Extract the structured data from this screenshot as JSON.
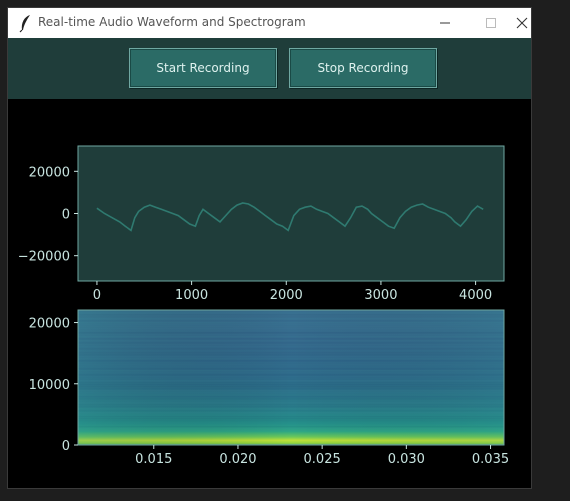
{
  "window": {
    "title": "Real-time Audio Waveform and Spectrogram"
  },
  "toolbar": {
    "start_label": "Start Recording",
    "stop_label": "Stop Recording"
  },
  "colors": {
    "toolbar_bg": "#1f3d3a",
    "button_bg": "#2b6b66",
    "plot_bg": "#1f3d3a",
    "waveform_line": "#2f7a70",
    "axis_text": "#c8e4e0"
  },
  "chart_data": [
    {
      "type": "line",
      "xlim": [
        -200,
        4300
      ],
      "ylim": [
        -32000,
        32000
      ],
      "xticks": [
        0,
        1000,
        2000,
        3000,
        4000
      ],
      "yticks": [
        20000,
        0,
        -20000
      ],
      "xtick_labels": [
        "0",
        "1000",
        "2000",
        "3000",
        "4000"
      ],
      "ytick_labels": [
        "20000",
        "0",
        "−20000"
      ],
      "series": [
        {
          "x": [
            0,
            80,
            160,
            240,
            300,
            360,
            400,
            440,
            500,
            560,
            620,
            680,
            740,
            800,
            860,
            920,
            980,
            1040,
            1080,
            1120,
            1180,
            1240,
            1300,
            1360,
            1420,
            1480,
            1540,
            1600,
            1660,
            1720,
            1780,
            1840,
            1900,
            1960,
            2020,
            2080,
            2140,
            2200,
            2260,
            2320,
            2380,
            2440,
            2500,
            2560,
            2620,
            2680,
            2740,
            2800,
            2860,
            2900,
            2960,
            3020,
            3080,
            3140,
            3200,
            3260,
            3320,
            3380,
            3440,
            3500,
            3560,
            3620,
            3680,
            3740,
            3780,
            3840,
            3900,
            3960,
            4020,
            4080
          ],
          "y": [
            2500,
            0,
            -2000,
            -4000,
            -6000,
            -8000,
            -2000,
            1000,
            3000,
            4000,
            3000,
            2000,
            1000,
            0,
            -1000,
            -3000,
            -5000,
            -6000,
            -1000,
            2000,
            0,
            -2000,
            -4000,
            -1000,
            2000,
            4000,
            5000,
            4500,
            3000,
            1000,
            -1000,
            -3000,
            -5000,
            -6000,
            -8000,
            -1000,
            2000,
            3000,
            3500,
            2000,
            1000,
            0,
            -2000,
            -4000,
            -6000,
            -2000,
            3000,
            3500,
            2000,
            0,
            -2000,
            -4000,
            -6000,
            -7000,
            -2000,
            1000,
            3000,
            4000,
            4500,
            3000,
            2000,
            1000,
            0,
            -2000,
            -4000,
            -6000,
            -3000,
            1000,
            3500,
            2000
          ]
        }
      ]
    },
    {
      "type": "heatmap",
      "xlim": [
        0.0105,
        0.0358
      ],
      "ylim": [
        0,
        22050
      ],
      "xticks": [
        0.015,
        0.02,
        0.025,
        0.03,
        0.035
      ],
      "yticks": [
        0,
        10000,
        20000
      ],
      "xtick_labels": [
        "0.015",
        "0.020",
        "0.025",
        "0.030",
        "0.035"
      ],
      "ytick_labels": [
        "0",
        "10000",
        "20000"
      ],
      "colormap": "viridis"
    }
  ]
}
